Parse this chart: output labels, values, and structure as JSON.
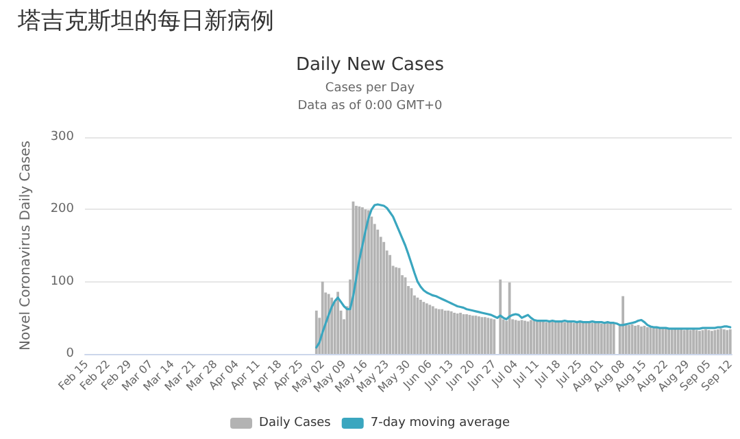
{
  "chart_data": {
    "type": "bar",
    "title": "塔吉克斯坦的每日新病例",
    "subtitle": "Daily New Cases",
    "annotations": [
      "Cases per Day",
      "Data as of 0:00 GMT+0"
    ],
    "ylabel": "Novel Coronavirus Daily Cases",
    "categories": [
      "Feb 15",
      null,
      null,
      null,
      null,
      null,
      null,
      "Feb 22",
      null,
      null,
      null,
      null,
      null,
      null,
      "Feb 29",
      null,
      null,
      null,
      null,
      null,
      null,
      "Mar 07",
      null,
      null,
      null,
      null,
      null,
      null,
      "Mar 14",
      null,
      null,
      null,
      null,
      null,
      null,
      "Mar 21",
      null,
      null,
      null,
      null,
      null,
      null,
      "Mar 28",
      null,
      null,
      null,
      null,
      null,
      null,
      "Apr 04",
      null,
      null,
      null,
      null,
      null,
      null,
      "Apr 11",
      null,
      null,
      null,
      null,
      null,
      null,
      "Apr 18",
      null,
      null,
      null,
      null,
      null,
      null,
      "Apr 25",
      null,
      null,
      null,
      null,
      null,
      null,
      "May 02",
      null,
      null,
      null,
      null,
      null,
      null,
      "May 09",
      null,
      null,
      null,
      null,
      null,
      null,
      "May 16",
      null,
      null,
      null,
      null,
      null,
      null,
      "May 23",
      null,
      null,
      null,
      null,
      null,
      null,
      "May 30",
      null,
      null,
      null,
      null,
      null,
      null,
      "Jun 06",
      null,
      null,
      null,
      null,
      null,
      null,
      "Jun 13",
      null,
      null,
      null,
      null,
      null,
      null,
      "Jun 20",
      null,
      null,
      null,
      null,
      null,
      null,
      "Jun 27",
      null,
      null,
      null,
      null,
      null,
      null,
      "Jul 04",
      null,
      null,
      null,
      null,
      null,
      null,
      "Jul 11",
      null,
      null,
      null,
      null,
      null,
      null,
      "Jul 18",
      null,
      null,
      null,
      null,
      null,
      null,
      "Jul 25",
      null,
      null,
      null,
      null,
      null,
      null,
      "Aug 01",
      null,
      null,
      null,
      null,
      null,
      null,
      "Aug 08",
      null,
      null,
      null,
      null,
      null,
      null,
      "Aug 15",
      null,
      null,
      null,
      null,
      null,
      null,
      "Aug 22",
      null,
      null,
      null,
      null,
      null,
      null,
      "Aug 29",
      null,
      null,
      null,
      null,
      null,
      null,
      "Sep 05",
      null,
      null,
      null,
      null,
      null,
      null,
      "Sep 12"
    ],
    "series": [
      {
        "name": "Daily Cases",
        "color": "#b3b3b3",
        "values": [
          null,
          null,
          null,
          null,
          null,
          null,
          null,
          null,
          null,
          null,
          null,
          null,
          null,
          null,
          null,
          null,
          null,
          null,
          null,
          null,
          null,
          null,
          null,
          null,
          null,
          null,
          null,
          null,
          null,
          null,
          null,
          null,
          null,
          null,
          null,
          null,
          null,
          null,
          null,
          null,
          null,
          null,
          null,
          null,
          null,
          null,
          null,
          null,
          null,
          null,
          null,
          null,
          null,
          null,
          null,
          null,
          null,
          null,
          null,
          null,
          null,
          null,
          null,
          null,
          null,
          null,
          null,
          null,
          null,
          null,
          null,
          null,
          null,
          null,
          null,
          60,
          50,
          100,
          85,
          83,
          78,
          72,
          86,
          60,
          48,
          66,
          103,
          211,
          205,
          204,
          203,
          200,
          199,
          190,
          180,
          172,
          162,
          155,
          143,
          137,
          122,
          120,
          119,
          109,
          106,
          94,
          91,
          81,
          78,
          75,
          72,
          70,
          68,
          66,
          63,
          62,
          62,
          60,
          60,
          59,
          57,
          56,
          57,
          55,
          55,
          54,
          53,
          53,
          52,
          51,
          51,
          50,
          49,
          48,
          null,
          103,
          48,
          46,
          99,
          48,
          47,
          46,
          47,
          46,
          45,
          47,
          46,
          45,
          46,
          45,
          44,
          46,
          45,
          44,
          45,
          46,
          44,
          45,
          44,
          43,
          45,
          44,
          43,
          44,
          45,
          43,
          44,
          43,
          42,
          44,
          43,
          42,
          43,
          null,
          40,
          80,
          42,
          40,
          41,
          39,
          40,
          38,
          39,
          37,
          38,
          36,
          37,
          36,
          35,
          36,
          35,
          34,
          35,
          34,
          35,
          33,
          34,
          33,
          34,
          33,
          32,
          33,
          34,
          33,
          32,
          33,
          34,
          35,
          34,
          33,
          34
        ]
      },
      {
        "name": "7-day moving average",
        "type": "line",
        "color": "#3aa6bf",
        "values": [
          null,
          null,
          null,
          null,
          null,
          null,
          null,
          null,
          null,
          null,
          null,
          null,
          null,
          null,
          null,
          null,
          null,
          null,
          null,
          null,
          null,
          null,
          null,
          null,
          null,
          null,
          null,
          null,
          null,
          null,
          null,
          null,
          null,
          null,
          null,
          null,
          null,
          null,
          null,
          null,
          null,
          null,
          null,
          null,
          null,
          null,
          null,
          null,
          null,
          null,
          null,
          null,
          null,
          null,
          null,
          null,
          null,
          null,
          null,
          null,
          null,
          null,
          null,
          null,
          null,
          null,
          null,
          null,
          null,
          null,
          null,
          null,
          null,
          null,
          null,
          9,
          16,
          30,
          42,
          54,
          65,
          73,
          78,
          72,
          66,
          62,
          62,
          80,
          105,
          130,
          150,
          170,
          188,
          200,
          206,
          207,
          206,
          205,
          202,
          196,
          190,
          180,
          170,
          160,
          150,
          138,
          125,
          112,
          100,
          93,
          88,
          85,
          83,
          81,
          80,
          78,
          76,
          74,
          72,
          70,
          68,
          66,
          65,
          64,
          62,
          61,
          60,
          59,
          58,
          57,
          56,
          55,
          54,
          52,
          50,
          53,
          50,
          48,
          52,
          54,
          55,
          54,
          50,
          52,
          54,
          50,
          47,
          46,
          46,
          46,
          46,
          45,
          46,
          45,
          45,
          45,
          46,
          45,
          45,
          45,
          44,
          45,
          44,
          44,
          44,
          45,
          44,
          44,
          44,
          43,
          44,
          43,
          43,
          42,
          40,
          40,
          41,
          42,
          43,
          44,
          46,
          47,
          44,
          40,
          38,
          37,
          37,
          36,
          36,
          36,
          35,
          35,
          35,
          35,
          35,
          35,
          35,
          35,
          35,
          35,
          35,
          36,
          36,
          36,
          36,
          36,
          37,
          37,
          38,
          38,
          37
        ]
      }
    ],
    "ylim": [
      0,
      300
    ],
    "yticks": [
      0,
      100,
      200,
      300
    ],
    "grid": "y",
    "legend": "bottom",
    "marker": "none",
    "line_style": "solid"
  }
}
